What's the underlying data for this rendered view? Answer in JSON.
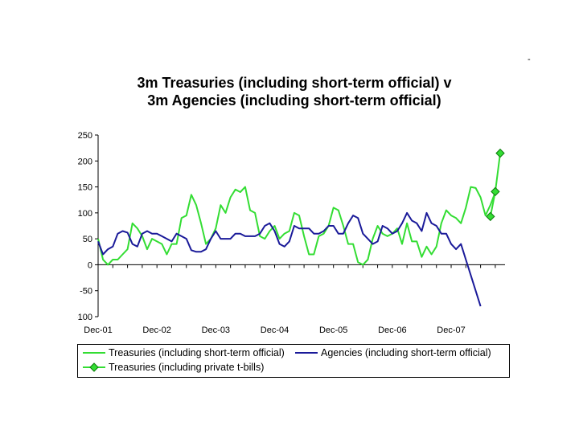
{
  "corner_mark": "-",
  "chart_data": {
    "type": "line",
    "title_lines": [
      "3m Treasuries (including short-term official) v",
      "3m Agencies (including short-term official)"
    ],
    "xlabel": "",
    "ylabel": "",
    "ylim": [
      -100,
      250
    ],
    "yticks": [
      250,
      200,
      150,
      100,
      50,
      0,
      -50,
      -100
    ],
    "xlim": [
      0,
      82
    ],
    "xticks": [
      {
        "label": "Dec-01",
        "x": 0
      },
      {
        "label": "Dec-02",
        "x": 12
      },
      {
        "label": "Dec-03",
        "x": 24
      },
      {
        "label": "Dec-04",
        "x": 36
      },
      {
        "label": "Dec-05",
        "x": 48
      },
      {
        "label": "Dec-06",
        "x": 60
      },
      {
        "label": "Dec-07",
        "x": 72
      }
    ],
    "grid": false,
    "legend_position": "bottom",
    "series": [
      {
        "name": "Treasuries (including short-term official)",
        "color": "#33dd33",
        "marker": "none",
        "values": [
          50,
          10,
          0,
          10,
          10,
          20,
          30,
          80,
          70,
          55,
          30,
          50,
          45,
          40,
          20,
          40,
          40,
          90,
          95,
          135,
          115,
          80,
          40,
          50,
          70,
          115,
          100,
          130,
          145,
          140,
          150,
          105,
          100,
          55,
          50,
          65,
          75,
          50,
          60,
          65,
          100,
          95,
          55,
          20,
          20,
          55,
          60,
          75,
          110,
          105,
          75,
          40,
          40,
          5,
          0,
          10,
          50,
          75,
          60,
          55,
          60,
          70,
          40,
          80,
          45,
          45,
          15,
          35,
          20,
          35,
          80,
          105,
          95,
          90,
          80,
          110,
          150,
          148,
          130,
          95,
          115,
          140
        ]
      },
      {
        "name": "Agencies (including short-term official)",
        "color": "#1a1a99",
        "marker": "none",
        "values": [
          45,
          20,
          30,
          35,
          60,
          65,
          62,
          40,
          35,
          60,
          65,
          60,
          60,
          55,
          50,
          45,
          60,
          55,
          50,
          28,
          25,
          25,
          30,
          50,
          65,
          50,
          50,
          50,
          60,
          60,
          55,
          55,
          55,
          60,
          75,
          80,
          65,
          40,
          35,
          45,
          75,
          70,
          70,
          70,
          60,
          60,
          65,
          75,
          75,
          60,
          60,
          80,
          95,
          90,
          60,
          50,
          40,
          45,
          75,
          70,
          60,
          65,
          80,
          100,
          85,
          80,
          65,
          100,
          80,
          75,
          60,
          60,
          40,
          30,
          40,
          10,
          -20,
          -50,
          -80
        ]
      },
      {
        "name": "Treasuries (including private t-bills)",
        "color": "#33dd33",
        "marker": "diamond",
        "x": [
          80,
          81,
          82
        ],
        "values": [
          93,
          141,
          215
        ]
      }
    ]
  }
}
